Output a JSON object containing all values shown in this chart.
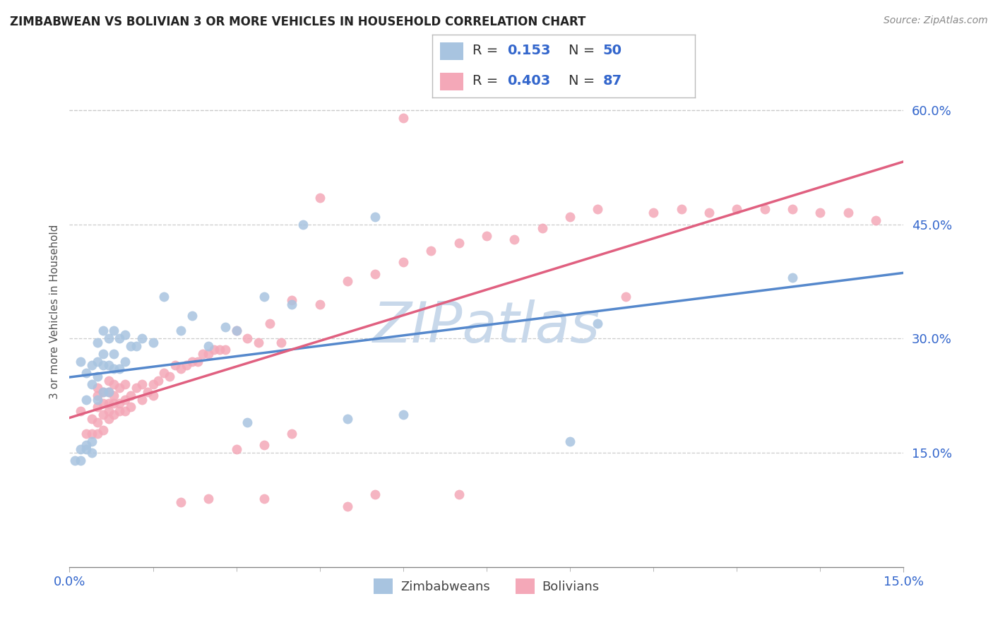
{
  "title": "ZIMBABWEAN VS BOLIVIAN 3 OR MORE VEHICLES IN HOUSEHOLD CORRELATION CHART",
  "source": "Source: ZipAtlas.com",
  "ylabel": "3 or more Vehicles in Household",
  "yticks_labels": [
    "15.0%",
    "30.0%",
    "45.0%",
    "60.0%"
  ],
  "ytick_values": [
    0.15,
    0.3,
    0.45,
    0.6
  ],
  "xlim": [
    0.0,
    0.15
  ],
  "ylim": [
    0.0,
    0.67
  ],
  "zim_R": 0.153,
  "zim_N": 50,
  "bol_R": 0.403,
  "bol_N": 87,
  "zim_color": "#a8c4e0",
  "bol_color": "#f4a8b8",
  "zim_line_color": "#5588cc",
  "bol_line_color": "#e06080",
  "watermark": "ZIPatlas",
  "watermark_color": "#c8d8ea",
  "background_color": "#ffffff",
  "legend_color": "#3366cc",
  "legend_black": "#333333",
  "zim_scatter_x": [
    0.001,
    0.002,
    0.002,
    0.002,
    0.003,
    0.003,
    0.003,
    0.003,
    0.004,
    0.004,
    0.004,
    0.004,
    0.005,
    0.005,
    0.005,
    0.005,
    0.006,
    0.006,
    0.006,
    0.006,
    0.007,
    0.007,
    0.007,
    0.008,
    0.008,
    0.008,
    0.009,
    0.009,
    0.01,
    0.01,
    0.011,
    0.012,
    0.013,
    0.015,
    0.017,
    0.02,
    0.022,
    0.025,
    0.028,
    0.03,
    0.032,
    0.035,
    0.04,
    0.042,
    0.05,
    0.055,
    0.06,
    0.09,
    0.095,
    0.13
  ],
  "zim_scatter_y": [
    0.14,
    0.14,
    0.155,
    0.27,
    0.155,
    0.16,
    0.22,
    0.255,
    0.15,
    0.165,
    0.24,
    0.265,
    0.22,
    0.25,
    0.27,
    0.295,
    0.23,
    0.265,
    0.28,
    0.31,
    0.23,
    0.265,
    0.3,
    0.26,
    0.28,
    0.31,
    0.26,
    0.3,
    0.27,
    0.305,
    0.29,
    0.29,
    0.3,
    0.295,
    0.355,
    0.31,
    0.33,
    0.29,
    0.315,
    0.31,
    0.19,
    0.355,
    0.345,
    0.45,
    0.195,
    0.46,
    0.2,
    0.165,
    0.32,
    0.38
  ],
  "bol_scatter_x": [
    0.002,
    0.003,
    0.004,
    0.004,
    0.005,
    0.005,
    0.005,
    0.005,
    0.005,
    0.006,
    0.006,
    0.006,
    0.006,
    0.007,
    0.007,
    0.007,
    0.007,
    0.007,
    0.008,
    0.008,
    0.008,
    0.008,
    0.009,
    0.009,
    0.009,
    0.01,
    0.01,
    0.01,
    0.011,
    0.011,
    0.012,
    0.013,
    0.013,
    0.014,
    0.015,
    0.015,
    0.016,
    0.017,
    0.018,
    0.019,
    0.02,
    0.021,
    0.022,
    0.023,
    0.024,
    0.025,
    0.026,
    0.027,
    0.028,
    0.03,
    0.032,
    0.034,
    0.036,
    0.038,
    0.04,
    0.045,
    0.05,
    0.055,
    0.06,
    0.065,
    0.07,
    0.075,
    0.08,
    0.085,
    0.09,
    0.095,
    0.1,
    0.105,
    0.11,
    0.115,
    0.12,
    0.125,
    0.13,
    0.135,
    0.14,
    0.145,
    0.035,
    0.04,
    0.03,
    0.025,
    0.02,
    0.05,
    0.055,
    0.06,
    0.07,
    0.045,
    0.035
  ],
  "bol_scatter_y": [
    0.205,
    0.175,
    0.175,
    0.195,
    0.175,
    0.19,
    0.21,
    0.225,
    0.235,
    0.18,
    0.2,
    0.215,
    0.23,
    0.195,
    0.205,
    0.215,
    0.23,
    0.245,
    0.2,
    0.215,
    0.225,
    0.24,
    0.205,
    0.215,
    0.235,
    0.205,
    0.22,
    0.24,
    0.21,
    0.225,
    0.235,
    0.22,
    0.24,
    0.23,
    0.225,
    0.24,
    0.245,
    0.255,
    0.25,
    0.265,
    0.26,
    0.265,
    0.27,
    0.27,
    0.28,
    0.28,
    0.285,
    0.285,
    0.285,
    0.31,
    0.3,
    0.295,
    0.32,
    0.295,
    0.35,
    0.345,
    0.375,
    0.385,
    0.4,
    0.415,
    0.425,
    0.435,
    0.43,
    0.445,
    0.46,
    0.47,
    0.355,
    0.465,
    0.47,
    0.465,
    0.47,
    0.47,
    0.47,
    0.465,
    0.465,
    0.455,
    0.16,
    0.175,
    0.155,
    0.09,
    0.085,
    0.08,
    0.095,
    0.59,
    0.095,
    0.485,
    0.09
  ]
}
